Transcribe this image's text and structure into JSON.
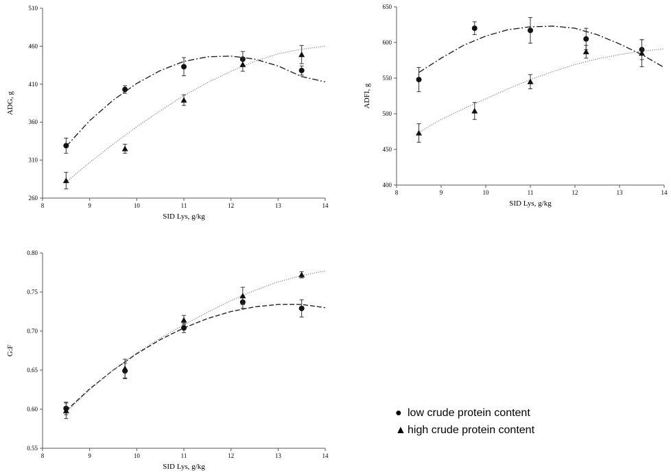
{
  "chart_data": [
    {
      "type": "scatter",
      "xlabel": "SID Lys, g/kg",
      "ylabel": "ADG, g",
      "xlim": [
        8,
        14
      ],
      "ylim": [
        260,
        510
      ],
      "xticks": [
        8,
        9,
        10,
        11,
        12,
        13,
        14
      ],
      "yticks": [
        260,
        310,
        360,
        410,
        460,
        510
      ],
      "x": [
        8.5,
        9.75,
        11,
        12.25,
        13.5
      ],
      "series": [
        {
          "marker": "circle",
          "line_style": "dash-dot",
          "values": [
            329,
            403,
            433,
            443,
            428
          ],
          "errors": [
            10,
            5,
            12,
            10,
            6
          ],
          "fit": {
            "x": [
              8.5,
              9.0,
              9.5,
              10.0,
              10.5,
              11.0,
              11.5,
              12.0,
              12.5,
              13.0,
              13.5,
              14.0
            ],
            "y": [
              328,
              362,
              389,
              411,
              428,
              440,
              446,
              447,
              443,
              434,
              420,
              413
            ]
          }
        },
        {
          "marker": "triangle",
          "line_style": "dotted",
          "values": [
            283,
            325,
            389,
            436,
            449
          ],
          "errors": [
            11,
            6,
            7,
            9,
            12
          ],
          "fit": {
            "x": [
              8.5,
              9.0,
              9.5,
              10.0,
              10.5,
              11.0,
              11.5,
              12.0,
              12.5,
              13.0,
              13.5,
              14.0
            ],
            "y": [
              281,
              307,
              331,
              354,
              375,
              395,
              412,
              427,
              440,
              450,
              456,
              460
            ]
          }
        }
      ]
    },
    {
      "type": "scatter",
      "xlabel": "SID Lys, g/kg",
      "ylabel": "ADFI, g",
      "xlim": [
        8,
        14
      ],
      "ylim": [
        400,
        650
      ],
      "xticks": [
        8,
        9,
        10,
        11,
        12,
        13,
        14
      ],
      "yticks": [
        400,
        450,
        500,
        550,
        600,
        650
      ],
      "x": [
        8.5,
        9.75,
        11,
        12.25,
        13.5
      ],
      "series": [
        {
          "marker": "circle",
          "line_style": "dash-dot",
          "values": [
            548,
            620,
            617,
            605,
            590
          ],
          "errors": [
            17,
            9,
            18,
            15,
            14
          ],
          "fit": {
            "x": [
              8.5,
              9.0,
              9.5,
              10.0,
              10.5,
              11.0,
              11.5,
              12.0,
              12.5,
              13.0,
              13.5,
              14.0
            ],
            "y": [
              558,
              578,
              596,
              609,
              618,
              622,
              623,
              620,
              611,
              598,
              583,
              565
            ]
          }
        },
        {
          "marker": "triangle",
          "line_style": "dotted",
          "values": [
            473,
            504,
            545,
            587,
            585
          ],
          "errors": [
            13,
            12,
            10,
            9,
            19
          ],
          "fit": {
            "x": [
              8.5,
              9.0,
              9.5,
              10.0,
              10.5,
              11.0,
              11.5,
              12.0,
              12.5,
              13.0,
              13.5,
              14.0
            ],
            "y": [
              474,
              492,
              507,
              521,
              535,
              548,
              559,
              569,
              577,
              583,
              588,
              591
            ]
          }
        }
      ]
    },
    {
      "type": "scatter",
      "xlabel": "SID Lys, g/kg",
      "ylabel": "G:F",
      "xlim": [
        8,
        14
      ],
      "ylim": [
        0.55,
        0.8
      ],
      "xticks": [
        8,
        9,
        10,
        11,
        12,
        13,
        14
      ],
      "yticks": [
        0.55,
        0.6,
        0.65,
        0.7,
        0.75,
        0.8
      ],
      "ytick_labels": [
        "0.55",
        "0.60",
        "0.65",
        "0.70",
        "0.75",
        "0.80"
      ],
      "x": [
        8.5,
        9.75,
        11,
        12.25,
        13.5
      ],
      "series": [
        {
          "marker": "circle",
          "line_style": "dashed",
          "values": [
            0.601,
            0.649,
            0.704,
            0.737,
            0.729
          ],
          "errors": [
            0.008,
            0.01,
            0.006,
            0.008,
            0.011
          ],
          "fit": {
            "x": [
              8.5,
              9.0,
              9.5,
              10.0,
              10.5,
              11.0,
              11.5,
              12.0,
              12.5,
              13.0,
              13.5,
              14.0
            ],
            "y": [
              0.598,
              0.626,
              0.65,
              0.671,
              0.689,
              0.704,
              0.716,
              0.725,
              0.731,
              0.734,
              0.734,
              0.73
            ]
          }
        },
        {
          "marker": "triangle",
          "line_style": "dotted",
          "values": [
            0.598,
            0.652,
            0.714,
            0.745,
            0.772
          ],
          "errors": [
            0.01,
            0.012,
            0.006,
            0.011,
            0.004
          ],
          "fit": {
            "x": [
              8.5,
              9.0,
              9.5,
              10.0,
              10.5,
              11.0,
              11.5,
              12.0,
              12.5,
              13.0,
              13.5,
              14.0
            ],
            "y": [
              0.596,
              0.625,
              0.65,
              0.672,
              0.691,
              0.708,
              0.724,
              0.739,
              0.752,
              0.763,
              0.771,
              0.777
            ]
          }
        }
      ]
    }
  ],
  "legend": [
    {
      "symbol": "●",
      "label": "low crude protein content"
    },
    {
      "symbol": "▲",
      "label": "high crude protein content"
    }
  ]
}
